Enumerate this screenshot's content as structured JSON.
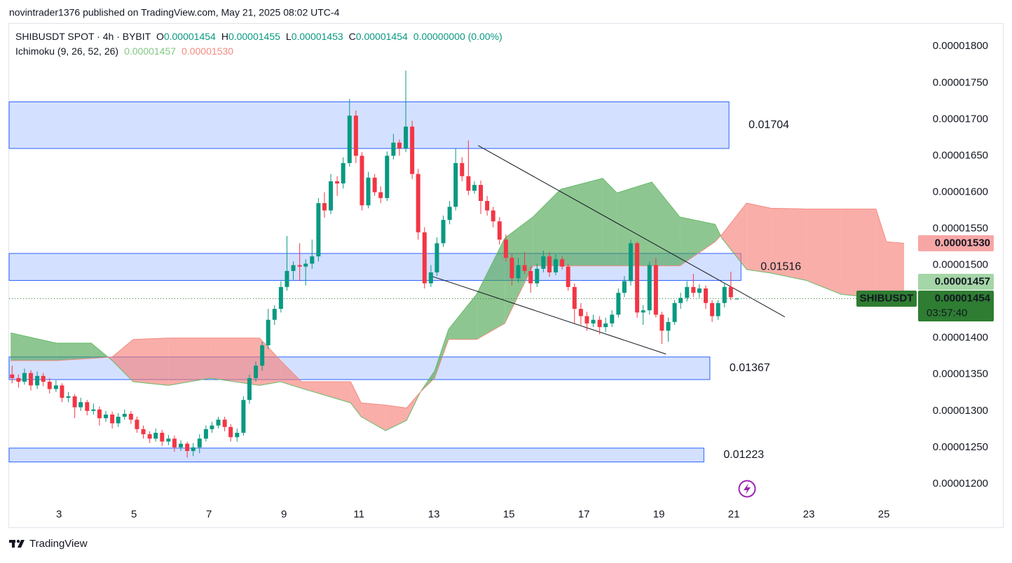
{
  "attribution": "novintrader1376 published on TradingView.com, May 21, 2025 08:02 UTC-4",
  "footer": "TradingView",
  "header": {
    "symbol": "SHIBUSDT SPOT · 4h · BYBIT",
    "ohlc": [
      {
        "key": "O",
        "value": "0.00001454"
      },
      {
        "key": "H",
        "value": "0.00001455"
      },
      {
        "key": "L",
        "value": "0.00001453"
      },
      {
        "key": "C",
        "value": "0.00001454"
      }
    ],
    "change": "0.00000000 (0.00%)",
    "indicator": "Ichimoku (9, 26, 52, 26)",
    "indicator_values": [
      "0.00001457",
      "0.00001530"
    ]
  },
  "chart_data": {
    "type": "candlestick",
    "up_color": "#089981",
    "down_color": "#f23645",
    "xlim": [
      1.67,
      25.82
    ],
    "xticks": [
      3,
      5,
      7,
      9,
      11,
      13,
      15,
      17,
      19,
      21,
      23,
      25
    ],
    "ylim": [
      1.174e-05,
      1.831e-05
    ],
    "yticks": [
      {
        "value": 1.2e-05,
        "label": "0.00001200"
      },
      {
        "value": 1.25e-05,
        "label": "0.00001250"
      },
      {
        "value": 1.3e-05,
        "label": "0.00001300"
      },
      {
        "value": 1.35e-05,
        "label": "0.00001350"
      },
      {
        "value": 1.4e-05,
        "label": "0.00001400"
      },
      {
        "value": 1.45e-05,
        "label": "0.00001450"
      },
      {
        "value": 1.5e-05,
        "label": "0.00001500"
      },
      {
        "value": 1.55e-05,
        "label": "0.00001550"
      },
      {
        "value": 1.6e-05,
        "label": "0.00001600"
      },
      {
        "value": 1.65e-05,
        "label": "0.00001650"
      },
      {
        "value": 1.7e-05,
        "label": "0.00001700"
      },
      {
        "value": 1.75e-05,
        "label": "0.00001750"
      },
      {
        "value": 1.8e-05,
        "label": "0.00001800"
      }
    ],
    "grid": false,
    "x": [
      1.75,
      1.92,
      2.08,
      2.25,
      2.42,
      2.58,
      2.75,
      2.92,
      3.08,
      3.25,
      3.42,
      3.58,
      3.75,
      3.92,
      4.08,
      4.25,
      4.42,
      4.58,
      4.75,
      4.92,
      5.08,
      5.25,
      5.42,
      5.58,
      5.75,
      5.92,
      6.08,
      6.25,
      6.42,
      6.58,
      6.75,
      6.92,
      7.08,
      7.25,
      7.42,
      7.58,
      7.75,
      7.92,
      8.08,
      8.25,
      8.42,
      8.58,
      8.75,
      8.92,
      9.08,
      9.25,
      9.42,
      9.58,
      9.75,
      9.92,
      10.08,
      10.25,
      10.42,
      10.58,
      10.75,
      10.92,
      11.08,
      11.25,
      11.42,
      11.58,
      11.75,
      11.92,
      12.08,
      12.25,
      12.42,
      12.58,
      12.75,
      12.92,
      13.08,
      13.25,
      13.42,
      13.58,
      13.75,
      13.92,
      14.08,
      14.25,
      14.42,
      14.58,
      14.75,
      14.92,
      15.08,
      15.25,
      15.42,
      15.58,
      15.75,
      15.92,
      16.08,
      16.25,
      16.42,
      16.58,
      16.75,
      16.92,
      17.08,
      17.25,
      17.42,
      17.58,
      17.75,
      17.92,
      18.08,
      18.25,
      18.42,
      18.58,
      18.75,
      18.92,
      19.08,
      19.25,
      19.42,
      19.58,
      19.75,
      19.92,
      20.08,
      20.25,
      20.42,
      20.58,
      20.75,
      20.92,
      21.08
    ],
    "open": [
      1.35e-05,
      1.345e-05,
      1.34e-05,
      1.352e-05,
      1.335e-05,
      1.348e-05,
      1.34e-05,
      1.33e-05,
      1.335e-05,
      1.318e-05,
      1.32e-05,
      1.305e-05,
      1.312e-05,
      1.3e-05,
      1.302e-05,
      1.29e-05,
      1.295e-05,
      1.283e-05,
      1.292e-05,
      1.296e-05,
      1.288e-05,
      1.275e-05,
      1.268e-05,
      1.262e-05,
      1.27e-05,
      1.258e-05,
      1.262e-05,
      1.25e-05,
      1.255e-05,
      1.245e-05,
      1.25e-05,
      1.262e-05,
      1.275e-05,
      1.28e-05,
      1.288e-05,
      1.278e-05,
      1.264e-05,
      1.27e-05,
      1.315e-05,
      1.345e-05,
      1.362e-05,
      1.39e-05,
      1.425e-05,
      1.44e-05,
      1.47e-05,
      1.492e-05,
      1.5e-05,
      1.498e-05,
      1.502e-05,
      1.512e-05,
      1.585e-05,
      1.575e-05,
      1.615e-05,
      1.612e-05,
      1.64e-05,
      1.705e-05,
      1.65e-05,
      1.582e-05,
      1.62e-05,
      1.6e-05,
      1.592e-05,
      1.65e-05,
      1.668e-05,
      1.66e-05,
      1.69e-05,
      1.625e-05,
      1.545e-05,
      1.475e-05,
      1.49e-05,
      1.53e-05,
      1.562e-05,
      1.58e-05,
      1.64e-05,
      1.622e-05,
      1.602e-05,
      1.61e-05,
      1.588e-05,
      1.575e-05,
      1.56e-05,
      1.535e-05,
      1.51e-05,
      1.482e-05,
      1.5e-05,
      1.492e-05,
      1.475e-05,
      1.495e-05,
      1.512e-05,
      1.49e-05,
      1.508e-05,
      1.498e-05,
      1.47e-05,
      1.44e-05,
      1.43e-05,
      1.42e-05,
      1.425e-05,
      1.415e-05,
      1.42e-05,
      1.432e-05,
      1.462e-05,
      1.478e-05,
      1.53e-05,
      1.435e-05,
      1.438e-05,
      1.5e-05,
      1.432e-05,
      1.41e-05,
      1.422e-05,
      1.448e-05,
      1.455e-05,
      1.47e-05,
      1.462e-05,
      1.468e-05,
      1.448e-05,
      1.43e-05,
      1.448e-05,
      1.47e-05,
      1.454e-05
    ],
    "high": [
      1.362e-05,
      1.35e-05,
      1.358e-05,
      1.356e-05,
      1.354e-05,
      1.352e-05,
      1.345e-05,
      1.342e-05,
      1.338e-05,
      1.326e-05,
      1.323e-05,
      1.318e-05,
      1.315e-05,
      1.31e-05,
      1.306e-05,
      1.3e-05,
      1.299e-05,
      1.297e-05,
      1.302e-05,
      1.3e-05,
      1.292e-05,
      1.28e-05,
      1.272e-05,
      1.276e-05,
      1.274e-05,
      1.267e-05,
      1.266e-05,
      1.26e-05,
      1.258e-05,
      1.256e-05,
      1.268e-05,
      1.28e-05,
      1.285e-05,
      1.292e-05,
      1.292e-05,
      1.282e-05,
      1.276e-05,
      1.32e-05,
      1.35e-05,
      1.368e-05,
      1.395e-05,
      1.44e-05,
      1.445e-05,
      1.478e-05,
      1.54e-05,
      1.505e-05,
      1.53e-05,
      1.508e-05,
      1.535e-05,
      1.592e-05,
      1.6e-05,
      1.625e-05,
      1.622e-05,
      1.648e-05,
      1.728e-05,
      1.712e-05,
      1.655e-05,
      1.628e-05,
      1.625e-05,
      1.608e-05,
      1.656e-05,
      1.68e-05,
      1.672e-05,
      1.767e-05,
      1.698e-05,
      1.632e-05,
      1.552e-05,
      1.5e-05,
      1.538e-05,
      1.568e-05,
      1.588e-05,
      1.66e-05,
      1.648e-05,
      1.671e-05,
      1.615e-05,
      1.616e-05,
      1.595e-05,
      1.58e-05,
      1.566e-05,
      1.542e-05,
      1.515e-05,
      1.51e-05,
      1.518e-05,
      1.498e-05,
      1.502e-05,
      1.52e-05,
      1.518e-05,
      1.515e-05,
      1.512e-05,
      1.502e-05,
      1.475e-05,
      1.448e-05,
      1.436e-05,
      1.432e-05,
      1.43e-05,
      1.428e-05,
      1.438e-05,
      1.468e-05,
      1.485e-05,
      1.535e-05,
      1.532e-05,
      1.445e-05,
      1.505e-05,
      1.51e-05,
      1.436e-05,
      1.428e-05,
      1.452e-05,
      1.462e-05,
      1.478e-05,
      1.488e-05,
      1.474e-05,
      1.472e-05,
      1.452e-05,
      1.452e-05,
      1.475e-05,
      1.491e-05,
      1.455e-05
    ],
    "low": [
      1.338e-05,
      1.332e-05,
      1.336e-05,
      1.328e-05,
      1.33e-05,
      1.334e-05,
      1.324e-05,
      1.326e-05,
      1.312e-05,
      1.312e-05,
      1.29e-05,
      1.3e-05,
      1.294e-05,
      1.295e-05,
      1.28e-05,
      1.285e-05,
      1.276e-05,
      1.278e-05,
      1.288e-05,
      1.282e-05,
      1.27e-05,
      1.262e-05,
      1.256e-05,
      1.258e-05,
      1.252e-05,
      1.253e-05,
      1.244e-05,
      1.245e-05,
      1.236e-05,
      1.238e-05,
      1.242e-05,
      1.258e-05,
      1.27e-05,
      1.276e-05,
      1.272e-05,
      1.258e-05,
      1.258e-05,
      1.266e-05,
      1.31e-05,
      1.34e-05,
      1.355e-05,
      1.385e-05,
      1.418e-05,
      1.435e-05,
      1.465e-05,
      1.48e-05,
      1.478e-05,
      1.472e-05,
      1.495e-05,
      1.505e-05,
      1.565e-05,
      1.57e-05,
      1.595e-05,
      1.605e-05,
      1.635e-05,
      1.64e-05,
      1.575e-05,
      1.578e-05,
      1.595e-05,
      1.585e-05,
      1.588e-05,
      1.645e-05,
      1.65e-05,
      1.655e-05,
      1.618e-05,
      1.535e-05,
      1.468e-05,
      1.47e-05,
      1.485e-05,
      1.525e-05,
      1.556e-05,
      1.575e-05,
      1.615e-05,
      1.596e-05,
      1.598e-05,
      1.57e-05,
      1.568e-05,
      1.552e-05,
      1.528e-05,
      1.505e-05,
      1.472e-05,
      1.476e-05,
      1.488e-05,
      1.462e-05,
      1.47e-05,
      1.49e-05,
      1.484e-05,
      1.486e-05,
      1.494e-05,
      1.465e-05,
      1.42e-05,
      1.418e-05,
      1.41e-05,
      1.415e-05,
      1.405e-05,
      1.408e-05,
      1.415e-05,
      1.428e-05,
      1.456e-05,
      1.472e-05,
      1.428e-05,
      1.418e-05,
      1.432e-05,
      1.428e-05,
      1.392e-05,
      1.395e-05,
      1.418e-05,
      1.44e-05,
      1.45e-05,
      1.456e-05,
      1.455e-05,
      1.44e-05,
      1.422e-05,
      1.425e-05,
      1.442e-05,
      1.452e-05,
      1.453e-05
    ],
    "close": [
      1.345e-05,
      1.34e-05,
      1.352e-05,
      1.335e-05,
      1.348e-05,
      1.34e-05,
      1.33e-05,
      1.335e-05,
      1.318e-05,
      1.32e-05,
      1.305e-05,
      1.312e-05,
      1.3e-05,
      1.302e-05,
      1.29e-05,
      1.295e-05,
      1.283e-05,
      1.292e-05,
      1.296e-05,
      1.288e-05,
      1.275e-05,
      1.268e-05,
      1.262e-05,
      1.27e-05,
      1.258e-05,
      1.262e-05,
      1.25e-05,
      1.255e-05,
      1.245e-05,
      1.25e-05,
      1.262e-05,
      1.275e-05,
      1.28e-05,
      1.288e-05,
      1.278e-05,
      1.264e-05,
      1.27e-05,
      1.315e-05,
      1.345e-05,
      1.362e-05,
      1.39e-05,
      1.425e-05,
      1.44e-05,
      1.47e-05,
      1.492e-05,
      1.5e-05,
      1.498e-05,
      1.502e-05,
      1.512e-05,
      1.585e-05,
      1.575e-05,
      1.615e-05,
      1.612e-05,
      1.64e-05,
      1.705e-05,
      1.65e-05,
      1.582e-05,
      1.62e-05,
      1.6e-05,
      1.592e-05,
      1.65e-05,
      1.668e-05,
      1.66e-05,
      1.69e-05,
      1.625e-05,
      1.545e-05,
      1.475e-05,
      1.49e-05,
      1.53e-05,
      1.562e-05,
      1.58e-05,
      1.64e-05,
      1.622e-05,
      1.602e-05,
      1.61e-05,
      1.588e-05,
      1.575e-05,
      1.56e-05,
      1.535e-05,
      1.51e-05,
      1.482e-05,
      1.5e-05,
      1.492e-05,
      1.475e-05,
      1.495e-05,
      1.512e-05,
      1.49e-05,
      1.508e-05,
      1.498e-05,
      1.47e-05,
      1.44e-05,
      1.43e-05,
      1.42e-05,
      1.425e-05,
      1.415e-05,
      1.42e-05,
      1.432e-05,
      1.462e-05,
      1.478e-05,
      1.53e-05,
      1.435e-05,
      1.438e-05,
      1.5e-05,
      1.432e-05,
      1.41e-05,
      1.422e-05,
      1.448e-05,
      1.455e-05,
      1.47e-05,
      1.462e-05,
      1.468e-05,
      1.448e-05,
      1.43e-05,
      1.448e-05,
      1.47e-05,
      1.456e-05,
      1.454e-05
    ],
    "ichimoku": {
      "up_color": "#43a047",
      "down_color": "#f7786f",
      "x": [
        1.71,
        2.93,
        3.86,
        4.42,
        4.98,
        5.92,
        7.04,
        8.35,
        8.91,
        9.47,
        10.78,
        11.06,
        11.71,
        12.27,
        12.64,
        13.02,
        13.39,
        14.14,
        14.89,
        15.64,
        16.38,
        17.5,
        17.88,
        18.81,
        19.56,
        20.5,
        20.68,
        21.34,
        21.99,
        22.93,
        23.86,
        24.79,
        25.07,
        25.54
      ],
      "span_a": [
        1.407e-05,
        1.393e-05,
        1.393e-05,
        1.369e-05,
        1.34e-05,
        1.335e-05,
        1.345e-05,
        1.335e-05,
        1.34e-05,
        1.331e-05,
        1.311e-05,
        1.292e-05,
        1.273e-05,
        1.287e-05,
        1.326e-05,
        1.355e-05,
        1.412e-05,
        1.46e-05,
        1.537e-05,
        1.566e-05,
        1.604e-05,
        1.619e-05,
        1.599e-05,
        1.614e-05,
        1.566e-05,
        1.556e-05,
        1.537e-05,
        1.494e-05,
        1.489e-05,
        1.479e-05,
        1.46e-05,
        1.455e-05,
        1.455e-05,
        1.457e-05
      ],
      "span_b": [
        1.369e-05,
        1.369e-05,
        1.372e-05,
        1.374e-05,
        1.398e-05,
        1.4e-05,
        1.4e-05,
        1.4e-05,
        1.369e-05,
        1.34e-05,
        1.34e-05,
        1.311e-05,
        1.308e-05,
        1.304e-05,
        1.326e-05,
        1.345e-05,
        1.398e-05,
        1.398e-05,
        1.42e-05,
        1.499e-05,
        1.499e-05,
        1.499e-05,
        1.499e-05,
        1.499e-05,
        1.499e-05,
        1.532e-05,
        1.542e-05,
        1.585e-05,
        1.578e-05,
        1.577e-05,
        1.577e-05,
        1.577e-05,
        1.532e-05,
        1.53e-05
      ]
    },
    "zones": [
      {
        "label": "0.01704",
        "x": [
          1.67,
          20.87
        ],
        "y": [
          1.66e-05,
          1.724e-05
        ]
      },
      {
        "label": "0.01516",
        "x": [
          1.67,
          21.19
        ],
        "y": [
          1.479e-05,
          1.516e-05
        ]
      },
      {
        "label": "0.01367",
        "x": [
          1.67,
          20.36
        ],
        "y": [
          1.343e-05,
          1.374e-05
        ]
      },
      {
        "label": "0.01223",
        "x": [
          1.67,
          20.2
        ],
        "y": [
          1.23e-05,
          1.249e-05
        ]
      }
    ],
    "zone_color": "#2962ff",
    "trendlines": [
      {
        "x": [
          14.18,
          22.36
        ],
        "y": [
          1.664e-05,
          1.429e-05
        ]
      },
      {
        "x": [
          12.87,
          19.19
        ],
        "y": [
          1.486e-05,
          1.378e-05
        ]
      }
    ],
    "price_labels": [
      {
        "value": 1.53e-05,
        "label": "0.00001530",
        "color": "#f7a6a6",
        "text_color": "#131722"
      },
      {
        "value": 1.457e-05,
        "label": "0.00001457",
        "color": "#a5d6a7",
        "text_color": "#131722"
      },
      {
        "value": 1.454e-05,
        "label": "0.00001454",
        "color": "#2e7d32",
        "text_color": "#ffffff",
        "symbol": "SHIBUSDT",
        "countdown": "03:57:40"
      }
    ]
  }
}
